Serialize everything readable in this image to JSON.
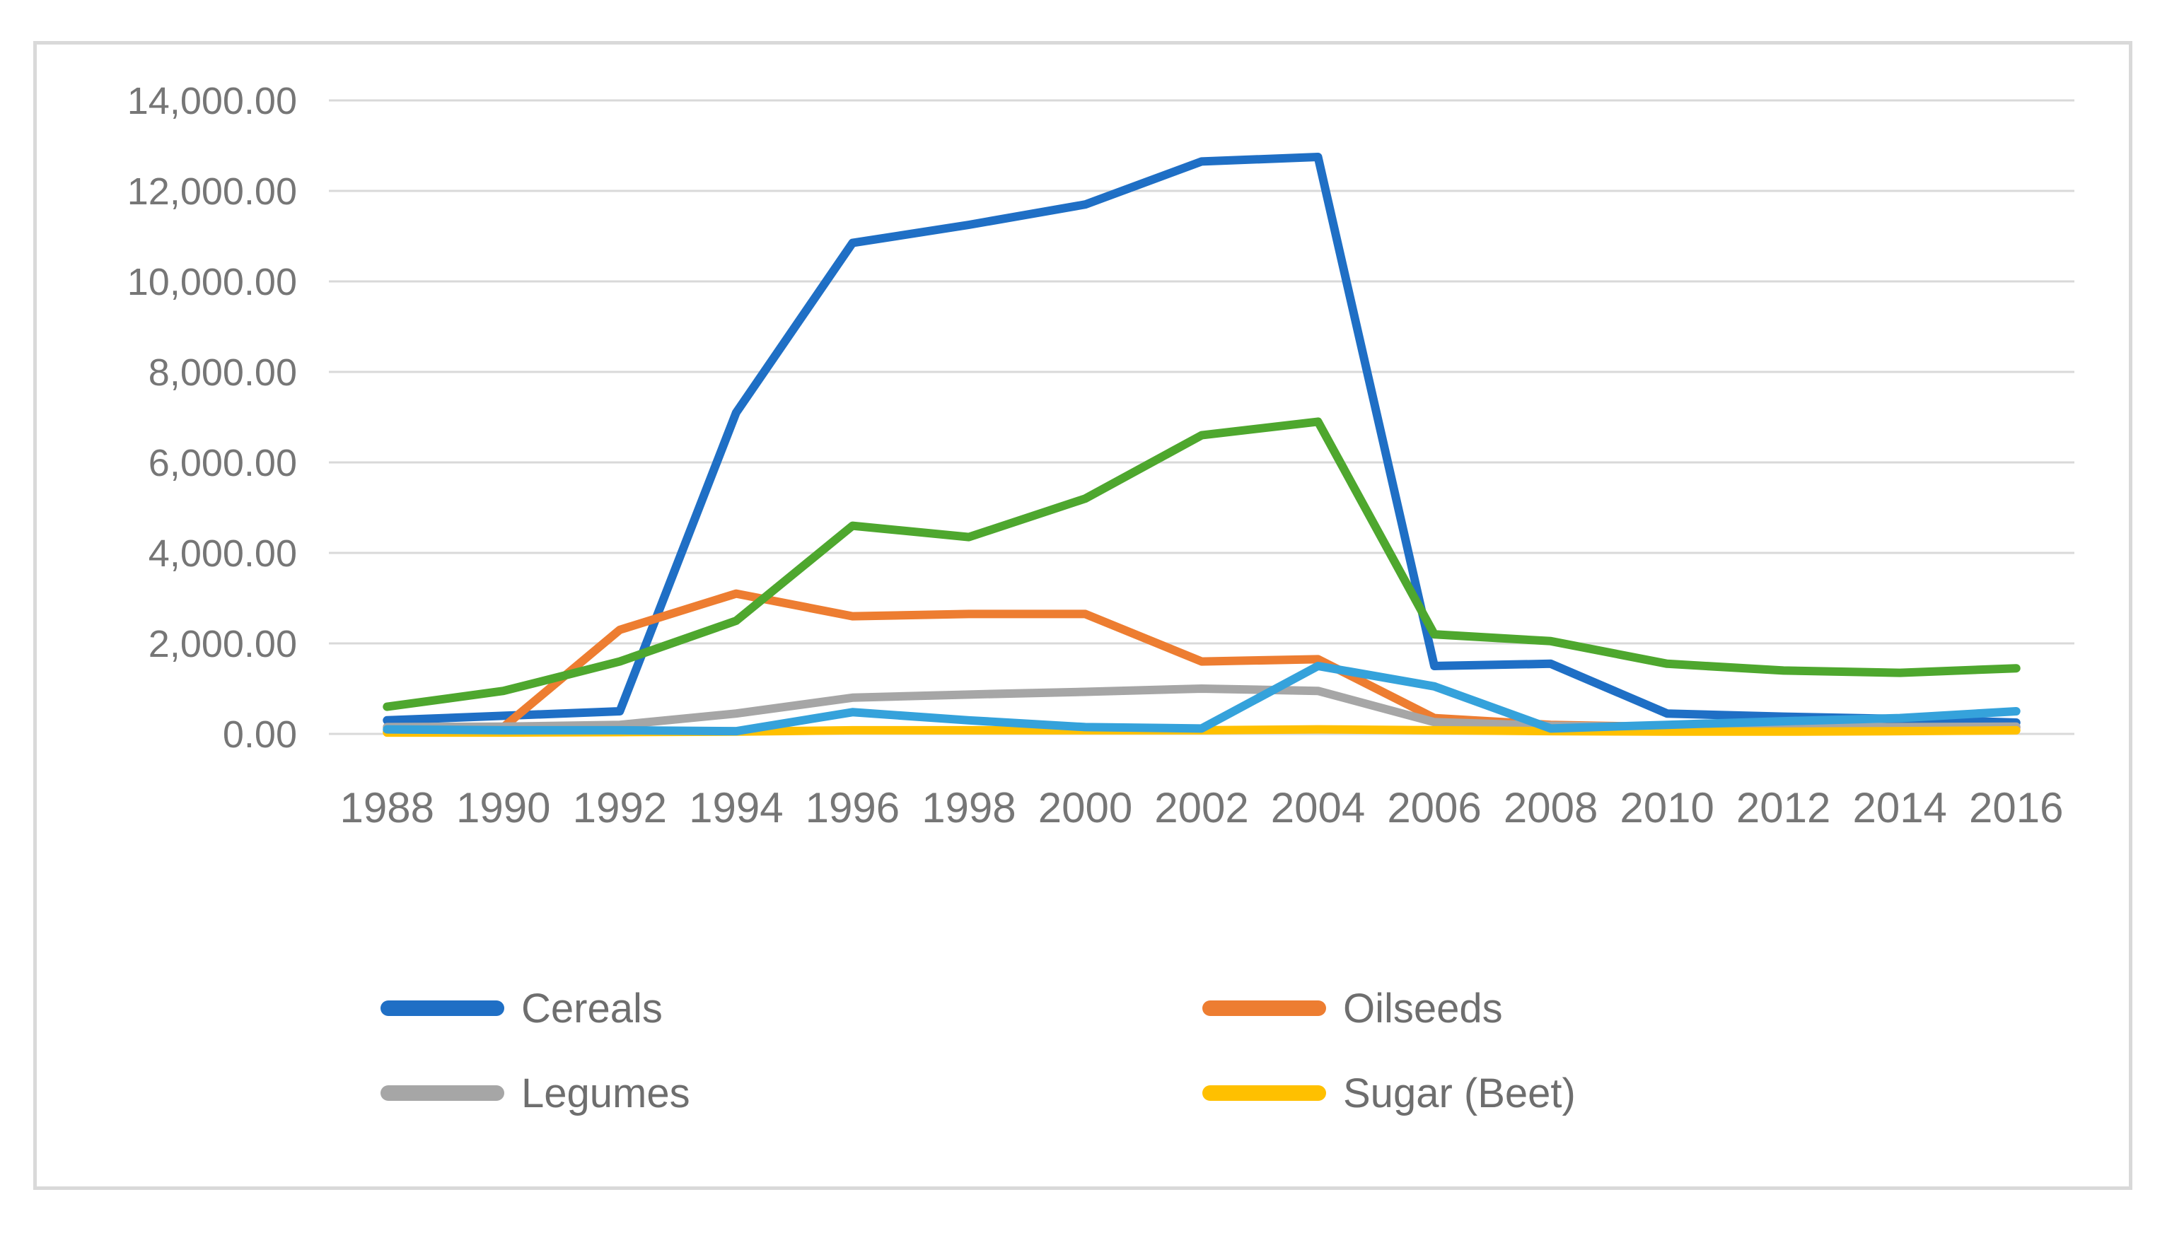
{
  "chart": {
    "title": "",
    "y_axis": {
      "labels": [
        "14,000.00",
        "12,000.00",
        "10,000.00",
        "8,000.00",
        "6,000.00",
        "4,000.00",
        "2,000.00",
        "0.00"
      ],
      "min": 0,
      "max": 14000,
      "step": 2000,
      "number_format": "#,##0.00"
    },
    "x_axis": {
      "labels": [
        "1988",
        "1990",
        "1992",
        "1994",
        "1996",
        "1998",
        "2000",
        "2002",
        "2004",
        "2006",
        "2008",
        "2010",
        "2012",
        "2014",
        "2016"
      ]
    },
    "legend": {
      "position": "bottom",
      "items": [
        {
          "label": "Cereals",
          "series": "cereals"
        },
        {
          "label": "Oilseeds",
          "series": "oilseeds"
        },
        {
          "label": "Legumes",
          "series": "legumes"
        },
        {
          "label": "Sugar (Beet)",
          "series": "sugar-beet"
        }
      ]
    },
    "colors": {
      "grid": "#d9d9d9",
      "frame": "#d9d9d9",
      "axis_text": "#767676",
      "legend_text": "#6e6e6e"
    }
  },
  "chart_data": {
    "type": "line",
    "categories": [
      1988,
      1990,
      1992,
      1994,
      1996,
      1998,
      2000,
      2002,
      2004,
      2006,
      2008,
      2010,
      2012,
      2014,
      2016
    ],
    "series": [
      {
        "id": "cereals",
        "name": "Cereals",
        "color": "#1f6fc5",
        "values": [
          300,
          400,
          500,
          7100,
          10850,
          11250,
          11700,
          12650,
          12750,
          1500,
          1550,
          450,
          380,
          330,
          250
        ]
      },
      {
        "id": "oilseeds",
        "name": "Oilseeds",
        "color": "#ed7d31",
        "values": [
          50,
          150,
          2300,
          3100,
          2600,
          2650,
          2650,
          1600,
          1650,
          350,
          200,
          150,
          130,
          130,
          140
        ]
      },
      {
        "id": "legumes",
        "name": "Legumes",
        "color": "#a6a6a6",
        "values": [
          150,
          160,
          200,
          450,
          800,
          870,
          930,
          1000,
          950,
          260,
          180,
          150,
          140,
          150,
          160
        ]
      },
      {
        "id": "sugar-beet",
        "name": "Sugar (Beet)",
        "color": "#ffc000",
        "values": [
          30,
          30,
          40,
          50,
          80,
          80,
          80,
          80,
          100,
          80,
          60,
          50,
          50,
          60,
          80
        ]
      },
      {
        "id": "unlabeled-green",
        "name": "",
        "color": "#4ea72e",
        "values": [
          600,
          950,
          1600,
          2500,
          4600,
          4350,
          5200,
          6600,
          6900,
          2200,
          2050,
          1550,
          1400,
          1350,
          1450
        ]
      },
      {
        "id": "unlabeled-light-blue",
        "name": "",
        "color": "#35a2db",
        "values": [
          100,
          80,
          80,
          60,
          480,
          300,
          150,
          120,
          1500,
          1050,
          120,
          200,
          280,
          350,
          500
        ]
      }
    ],
    "ylim": [
      0,
      14000
    ],
    "grid": true,
    "legend_position": "bottom",
    "title": "",
    "xlabel": "",
    "ylabel": ""
  }
}
